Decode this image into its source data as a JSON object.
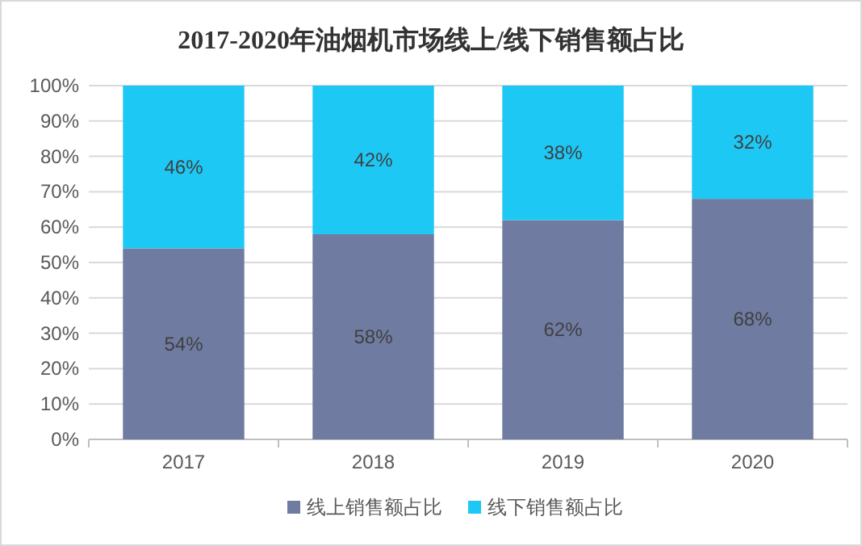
{
  "chart_data": {
    "type": "bar",
    "stacked": true,
    "title": "2017-2020年油烟机市场线上/线下销售额占比",
    "categories": [
      "2017",
      "2018",
      "2019",
      "2020"
    ],
    "series": [
      {
        "name": "线上销售额占比",
        "color": "#6f7ba1",
        "values": [
          54,
          58,
          62,
          68
        ],
        "value_labels": [
          "54%",
          "58%",
          "62%",
          "68%"
        ]
      },
      {
        "name": "线下销售额占比",
        "color": "#1ec8f5",
        "values": [
          46,
          42,
          38,
          32
        ],
        "value_labels": [
          "46%",
          "42%",
          "38%",
          "32%"
        ]
      }
    ],
    "ylim": [
      0,
      100
    ],
    "yticks": [
      {
        "value": 0,
        "label": "0%"
      },
      {
        "value": 10,
        "label": "10%"
      },
      {
        "value": 20,
        "label": "20%"
      },
      {
        "value": 30,
        "label": "30%"
      },
      {
        "value": 40,
        "label": "40%"
      },
      {
        "value": 50,
        "label": "50%"
      },
      {
        "value": 60,
        "label": "60%"
      },
      {
        "value": 70,
        "label": "70%"
      },
      {
        "value": 80,
        "label": "80%"
      },
      {
        "value": 90,
        "label": "90%"
      },
      {
        "value": 100,
        "label": "100%"
      }
    ],
    "grid": "y",
    "legend": "bottom"
  }
}
